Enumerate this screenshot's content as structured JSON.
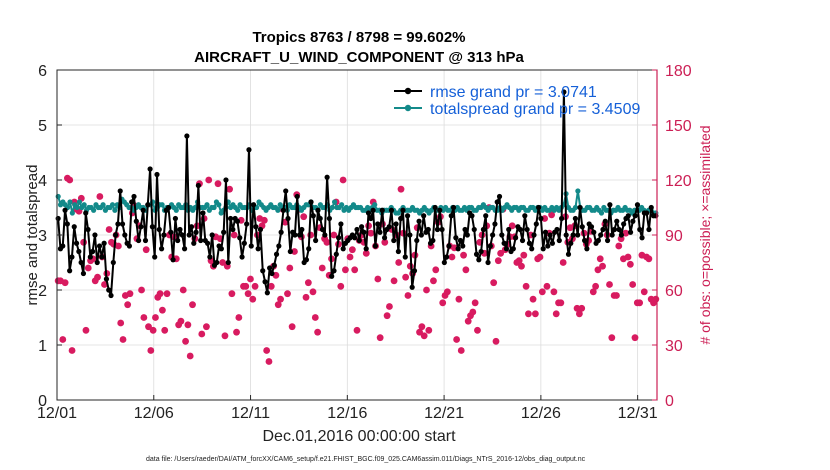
{
  "chart_data": {
    "type": "line",
    "title_line1": "Tropics 8763 / 8798 = 99.602%",
    "title_line2": "AIRCRAFT_U_WIND_COMPONENT @ 313 hPa",
    "xlabel": "Dec.01,2016 00:00:00 start",
    "ylabel_left": "rmse and totalspread",
    "ylabel_right": "# of obs: o=possible; ×=assimilated",
    "footnote": "data file: /Users/raeder/DAI/ATM_forcXX/CAM6_setup/f.e21.FHIST_BGC.f09_025.CAM6assim.011/Diags_NTrS_2016-12/obs_diag_output.nc",
    "ylim_left": [
      0,
      6
    ],
    "ylim_right": [
      0,
      180
    ],
    "xlim": [
      0,
      31
    ],
    "x_ticks": [
      0,
      5,
      10,
      15,
      20,
      25,
      30
    ],
    "x_tick_labels": [
      "12/01",
      "12/06",
      "12/11",
      "12/16",
      "12/21",
      "12/26",
      "12/31"
    ],
    "y_left_ticks": [
      "0",
      "1",
      "2",
      "3",
      "4",
      "5",
      "6"
    ],
    "y_right_ticks": [
      "0",
      "30",
      "60",
      "90",
      "120",
      "150",
      "180"
    ],
    "colors": {
      "rmse": "#000000",
      "spread": "#138a8a",
      "obs": "#d81b60",
      "legend_text": "#1560d8"
    },
    "legend": [
      {
        "name": "rmse",
        "label": "rmse grand pr = 3.0741"
      },
      {
        "name": "spread",
        "label": "totalspread grand pr = 3.4509"
      }
    ],
    "series": [
      {
        "name": "rmse",
        "values": [
          3.3,
          2.75,
          2.8,
          3.45,
          3.2,
          2.35,
          2.6,
          3.15,
          2.85,
          2.7,
          2.5,
          2.3,
          3.4,
          3.1,
          2.6,
          2.7,
          3.0,
          2.5,
          2.8,
          2.6,
          2.85,
          2.2,
          2.0,
          1.9,
          2.5,
          3.0,
          3.2,
          3.8,
          3.2,
          3.0,
          2.85,
          2.8,
          3.6,
          3.7,
          3.25,
          2.9,
          3.15,
          3.45,
          2.9,
          3.55,
          4.2,
          3.15,
          2.6,
          4.1,
          3.1,
          2.75,
          3.0,
          3.45,
          3.5,
          3.05,
          2.55,
          3.3,
          2.9,
          3.1,
          3.0,
          2.75,
          4.8,
          3.0,
          3.15,
          2.85,
          3.05,
          3.9,
          2.9,
          3.4,
          2.9,
          2.85,
          2.6,
          3.0,
          2.45,
          2.5,
          2.8,
          2.75,
          3.05,
          4.0,
          2.5,
          3.3,
          3.1,
          3.3,
          3.25,
          2.95,
          2.6,
          2.85,
          3.2,
          4.55,
          2.8,
          3.55,
          3.15,
          2.75,
          3.1,
          2.35,
          2.15,
          1.95,
          2.4,
          2.3,
          2.45,
          2.65,
          2.8,
          3.05,
          3.45,
          3.8,
          3.3,
          2.7,
          3.05,
          3.0,
          3.7,
          3.0,
          3.1,
          2.5,
          2.55,
          2.75,
          3.6,
          3.35,
          2.9,
          3.45,
          3.3,
          3.1,
          3.0,
          4.05,
          3.3,
          2.25,
          2.35,
          2.65,
          2.95,
          3.2,
          2.75,
          2.85,
          2.9,
          2.95,
          3.0,
          2.95,
          3.1,
          2.9,
          3.15,
          3.05,
          2.75,
          3.4,
          3.3,
          3.45,
          2.8,
          3.2,
          3.05,
          3.45,
          2.95,
          3.1,
          3.15,
          3.45,
          2.9,
          3.2,
          2.7,
          3.3,
          3.45,
          2.6,
          3.35,
          3.0,
          2.05,
          2.35,
          2.9,
          3.25,
          3.0,
          3.35,
          3.05,
          3.1,
          2.85,
          2.9,
          3.5,
          3.1,
          3.45,
          3.1,
          2.5,
          2.6,
          2.8,
          3.35,
          3.5,
          2.95,
          2.75,
          2.9,
          2.8,
          3.1,
          3.0,
          3.4,
          3.35,
          3.1,
          2.65,
          2.55,
          2.7,
          3.1,
          3.35,
          2.5,
          2.8,
          3.0,
          3.2,
          3.6,
          3.7,
          3.0,
          2.85,
          2.75,
          3.1,
          2.7,
          2.75,
          2.95,
          3.15,
          3.1,
          2.9,
          3.35,
          3.1,
          2.85,
          2.75,
          3.0,
          3.2,
          3.5,
          3.3,
          2.75,
          3.05,
          2.8,
          3.0,
          2.85,
          3.05,
          3.1,
          2.9,
          3.3,
          5.6,
          3.0,
          2.65,
          2.85,
          3.0,
          3.3,
          3.0,
          3.5,
          3.15,
          2.9,
          2.75,
          3.2,
          3.15,
          3.05,
          2.85,
          2.9,
          3.0,
          3.1,
          3.25,
          2.9,
          3.55,
          3.0,
          3.1,
          3.25,
          3.1,
          3.0,
          3.2,
          3.3,
          3.35,
          3.05,
          3.25,
          3.35,
          3.55,
          3.1,
          2.95,
          3.4,
          3.4,
          3.1,
          3.5,
          3.35,
          3.35
        ]
      },
      {
        "name": "spread",
        "values": [
          3.7,
          3.55,
          3.6,
          3.55,
          3.5,
          3.6,
          3.4,
          3.55,
          3.5,
          3.6,
          3.5,
          3.55,
          3.45,
          3.5,
          3.5,
          3.45,
          3.55,
          3.5,
          3.5,
          3.55,
          3.45,
          3.5,
          3.5,
          3.55,
          3.45,
          3.55,
          3.5,
          3.65,
          3.6,
          3.55,
          3.5,
          3.5,
          3.45,
          3.5,
          3.55,
          3.5,
          3.5,
          3.45,
          3.55,
          3.55,
          3.6,
          3.45,
          3.5,
          3.55,
          3.55,
          3.45,
          3.5,
          3.5,
          3.55,
          3.5,
          3.45,
          3.55,
          3.5,
          3.5,
          3.55,
          3.45,
          3.5,
          3.45,
          3.5,
          3.6,
          3.5,
          3.5,
          3.5,
          3.55,
          3.45,
          3.5,
          3.5,
          3.6,
          3.55,
          3.4,
          3.45,
          3.5,
          3.6,
          3.5,
          3.55,
          3.5,
          3.45,
          3.55,
          3.5,
          3.5,
          3.5,
          3.55,
          3.45,
          3.5,
          3.5,
          3.6,
          3.55,
          3.5,
          3.45,
          3.5,
          3.55,
          3.5,
          3.5,
          3.45,
          3.55,
          3.5,
          3.5,
          3.45,
          3.55,
          3.5,
          3.5,
          3.55,
          3.5,
          3.45,
          3.5,
          3.55,
          3.55,
          3.6,
          3.5,
          3.5,
          3.45,
          3.55,
          3.5,
          3.5,
          3.55,
          3.45,
          3.5,
          3.6,
          3.5,
          3.5,
          3.55,
          3.45,
          3.5,
          3.45,
          3.5,
          3.55,
          3.5,
          3.5,
          3.5,
          3.45,
          3.45,
          3.5,
          3.45,
          3.5,
          3.55,
          3.45,
          3.45,
          3.4,
          3.45,
          3.45,
          3.45,
          3.5,
          3.45,
          3.4,
          3.4,
          3.45,
          3.5,
          3.45,
          3.45,
          3.45,
          3.5,
          3.45,
          3.45,
          3.4,
          3.45,
          3.5,
          3.45,
          3.4,
          3.45,
          3.5,
          3.45,
          3.45,
          3.5,
          3.45,
          3.5,
          3.45,
          3.45,
          3.5,
          3.45,
          3.5,
          3.45,
          3.45,
          3.5,
          3.45,
          3.5,
          3.5,
          3.45,
          3.45,
          3.5,
          3.5,
          3.55,
          3.5,
          3.45,
          3.5,
          3.5,
          3.45,
          3.45,
          3.5,
          3.45,
          3.5,
          3.55,
          3.5,
          3.45,
          3.5,
          3.5,
          3.45,
          3.5,
          3.5,
          3.45,
          3.45,
          3.5,
          3.5,
          3.45,
          3.5,
          3.5,
          3.45,
          3.5,
          3.45,
          3.45,
          3.5,
          3.45,
          3.5,
          3.45,
          3.5,
          3.55,
          3.75,
          3.5,
          3.45,
          3.45,
          3.5,
          3.8,
          3.5,
          3.45,
          3.45,
          3.5,
          3.5,
          3.45,
          3.45,
          3.5,
          3.45,
          3.4,
          3.5,
          3.45,
          3.45,
          3.4,
          3.45,
          3.45,
          3.5,
          3.45,
          3.45,
          3.5,
          3.45,
          3.45,
          3.4,
          3.45,
          3.45,
          3.45,
          3.5,
          3.45,
          3.4,
          3.45,
          3.45,
          3.4,
          3.4
        ]
      },
      {
        "name": "obs_count",
        "values": [
          65,
          65,
          33,
          64,
          121,
          120,
          27,
          108,
          104,
          103,
          110,
          86,
          38,
          72,
          76,
          77,
          65,
          67,
          111,
          78,
          63,
          69,
          93,
          86,
          85,
          90,
          84,
          42,
          33,
          57,
          52,
          58,
          102,
          106,
          88,
          95,
          60,
          45,
          82,
          40,
          27,
          38,
          45,
          56,
          58,
          49,
          38,
          58,
          90,
          78,
          89,
          77,
          41,
          43,
          60,
          32,
          41,
          24,
          52,
          88,
          95,
          118,
          36,
          99,
          40,
          120,
          76,
          73,
          89,
          118,
          88,
          75,
          35,
          73,
          115,
          58,
          90,
          37,
          45,
          98,
          62,
          62,
          58,
          66,
          55,
          62,
          90,
          99,
          95,
          98,
          27,
          21,
          62,
          73,
          68,
          52,
          55,
          104,
          97,
          58,
          72,
          40,
          81,
          112,
          104,
          89,
          100,
          56,
          64,
          90,
          59,
          45,
          37,
          94,
          72,
          88,
          86,
          68,
          77,
          90,
          108,
          85,
          62,
          120,
          71,
          88,
          78,
          82,
          71,
          38,
          87,
          90,
          86,
          80,
          95,
          91,
          108,
          84,
          66,
          34,
          96,
          86,
          46,
          51,
          93,
          65,
          90,
          75,
          115,
          91,
          67,
          57,
          73,
          69,
          79,
          94,
          37,
          40,
          35,
          60,
          38,
          84,
          65,
          71,
          97,
          100,
          53,
          57,
          59,
          84,
          78,
          83,
          33,
          55,
          27,
          79,
          71,
          43,
          46,
          48,
          53,
          38,
          86,
          90,
          80,
          95,
          105,
          84,
          64,
          32,
          76,
          80,
          104,
          82,
          85,
          89,
          95,
          89,
          75,
          76,
          73,
          79,
          62,
          47,
          90,
          55,
          47,
          77,
          78,
          59,
          99,
          62,
          91,
          101,
          59,
          47,
          53,
          53,
          75,
          100,
          86,
          94,
          88,
          95,
          50,
          47,
          50,
          91,
          85,
          87,
          92,
          59,
          62,
          71,
          77,
          73,
          96,
          90,
          63,
          34,
          57,
          57,
          84,
          88,
          77,
          91,
          78,
          74,
          63,
          34,
          53,
          53,
          79,
          59,
          78,
          77,
          55,
          53,
          55
        ]
      }
    ]
  }
}
